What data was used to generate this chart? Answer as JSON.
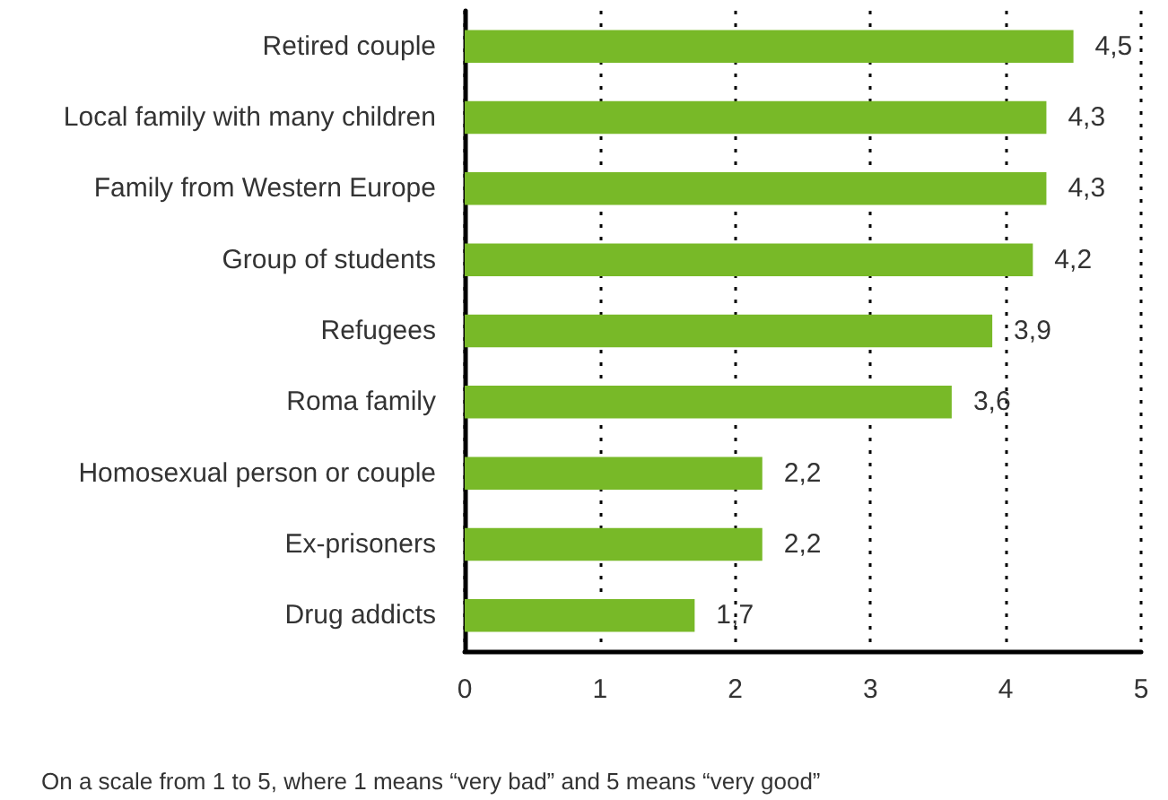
{
  "chart_data": {
    "type": "bar",
    "orientation": "horizontal",
    "categories": [
      "Retired couple",
      "Local family with many children",
      "Family from Western Europe",
      "Group of students",
      "Refugees",
      "Roma family",
      "Homosexual person or couple",
      "Ex-prisoners",
      "Drug addicts"
    ],
    "values": [
      4.5,
      4.3,
      4.3,
      4.2,
      3.9,
      3.6,
      2.2,
      2.2,
      1.7
    ],
    "value_labels": [
      "4,5",
      "4,3",
      "4,3",
      "4,2",
      "3,9",
      "3,6",
      "2,2",
      "2,2",
      "1,7"
    ],
    "color": "#78b928",
    "xlim": [
      0,
      5
    ],
    "xticks": [
      0,
      1,
      2,
      3,
      4,
      5
    ],
    "grid": "x",
    "annotations": [
      "On a scale from 1 to 5, where 1 means “very bad” and 5 means “very good”"
    ]
  }
}
